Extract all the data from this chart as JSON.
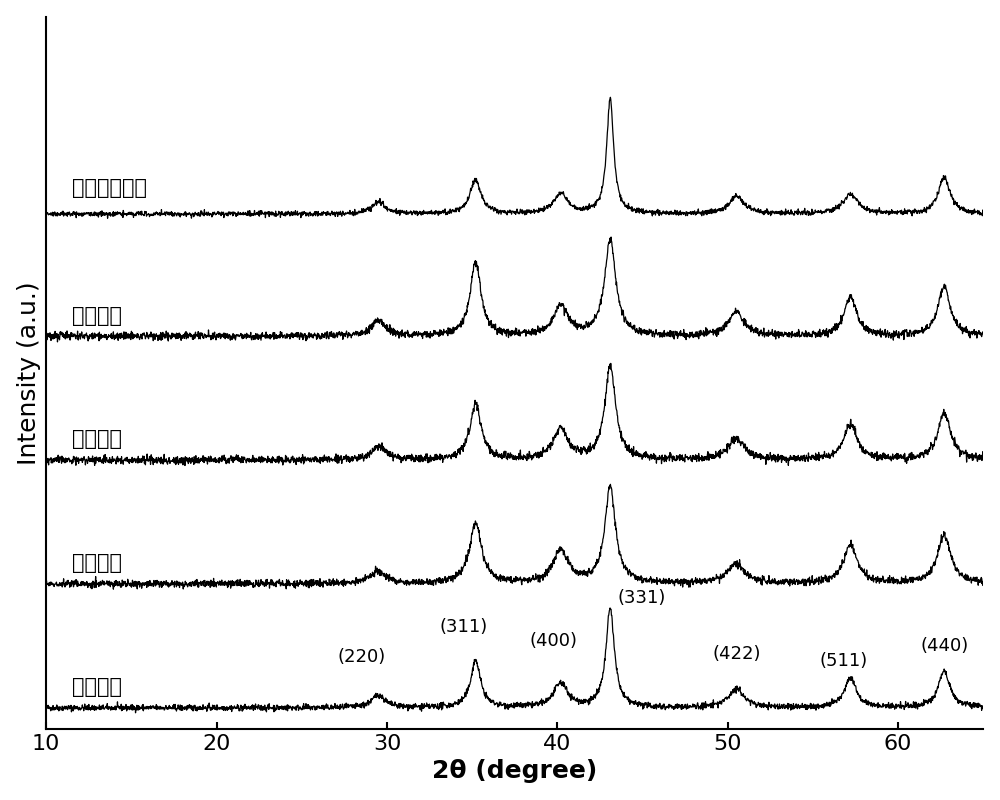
{
  "x_min": 10,
  "x_max": 65,
  "xlabel": "2θ (degree)",
  "ylabel": "Intensity (a.u.)",
  "xticks": [
    10,
    20,
    30,
    40,
    50,
    60
  ],
  "labels": [
    "实施例一",
    "实施例二",
    "实施例三",
    "实施例四",
    "实施例五、六"
  ],
  "peak_labels": [
    "(220)",
    "(311)",
    "(400)",
    "(331)",
    "(422)",
    "(511)",
    "(440)"
  ],
  "background_color": "#ffffff",
  "line_color": "#000000",
  "fontsize_label": 18,
  "fontsize_tick": 16,
  "fontsize_annotation": 13,
  "fontsize_trace_label": 15
}
